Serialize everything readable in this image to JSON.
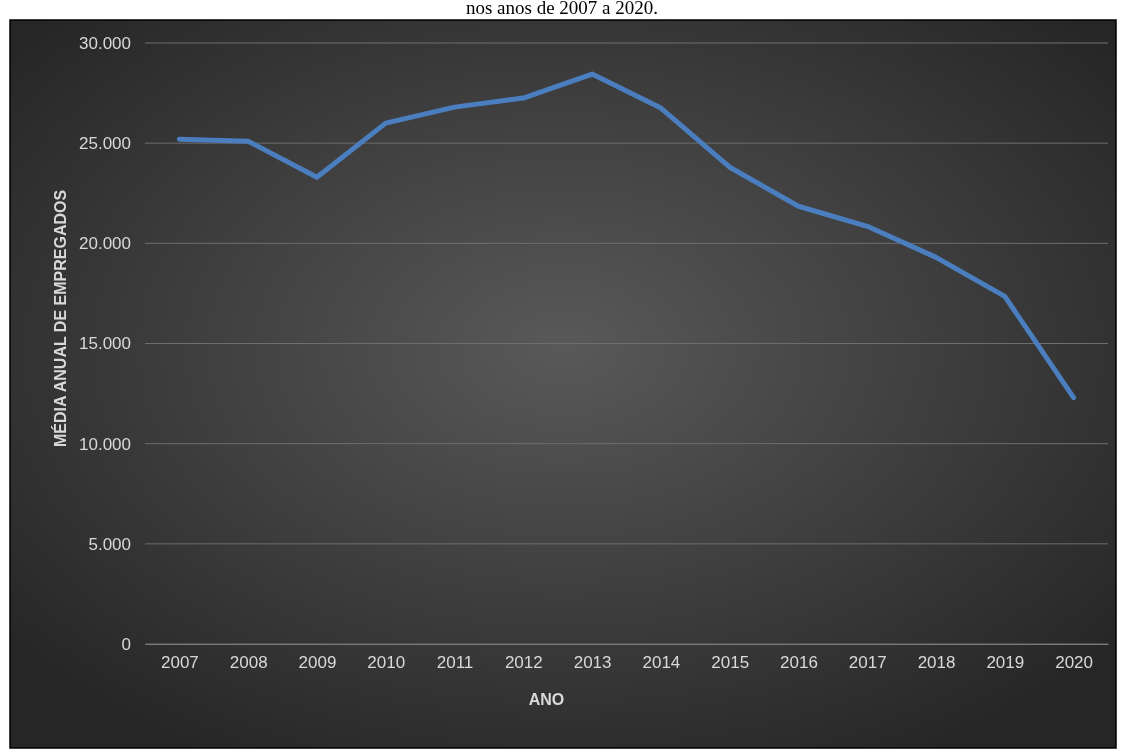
{
  "chart_data": {
    "type": "line",
    "title": "nos anos de 2007 a 2020.",
    "xlabel": "ANO",
    "ylabel": "MÉDIA ANUAL DE EMPREGADOS",
    "categories": [
      "2007",
      "2008",
      "2009",
      "2010",
      "2011",
      "2012",
      "2013",
      "2014",
      "2015",
      "2016",
      "2017",
      "2018",
      "2019",
      "2020"
    ],
    "series": [
      {
        "color": "#4a7ebf",
        "values": [
          25200,
          25100,
          23300,
          26000,
          26800,
          27250,
          28450,
          26750,
          23800,
          21850,
          20850,
          19300,
          17350,
          12300
        ]
      }
    ],
    "ylim": [
      0,
      30000
    ],
    "yticks": [
      {
        "value": 0,
        "label": "0"
      },
      {
        "value": 5000,
        "label": "5.000"
      },
      {
        "value": 10000,
        "label": "10.000"
      },
      {
        "value": 15000,
        "label": "15.000"
      },
      {
        "value": 20000,
        "label": "20.000"
      },
      {
        "value": 25000,
        "label": "25.000"
      },
      {
        "value": 30000,
        "label": "30.000"
      }
    ],
    "grid": "y",
    "marker": "none",
    "line_style": "solid"
  }
}
